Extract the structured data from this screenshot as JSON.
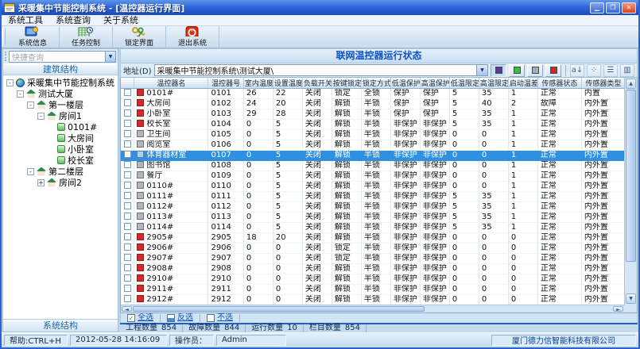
{
  "window": {
    "title": "采暖集中节能控制系统 - [温控器运行界面]"
  },
  "menu": {
    "items": [
      {
        "label": "系统工具"
      },
      {
        "label": "系统查询"
      },
      {
        "label": "关于系统"
      }
    ]
  },
  "toolbar": {
    "buttons": [
      {
        "label": "系统信息"
      },
      {
        "label": "任务控制"
      },
      {
        "label": "锁定界面"
      },
      {
        "label": "退出系统"
      }
    ]
  },
  "sidebar": {
    "quick_search": "快捷查询",
    "header": "建筑结构",
    "footer": "系统结构",
    "tree": [
      {
        "label": "采暖集中节能控制系统",
        "level": 0,
        "icon": "globe",
        "toggle": "-"
      },
      {
        "label": "测试大厦",
        "level": 1,
        "icon": "house",
        "toggle": "-"
      },
      {
        "label": "第一楼层",
        "level": 2,
        "icon": "house",
        "toggle": "-"
      },
      {
        "label": "房间1",
        "level": 3,
        "icon": "house",
        "toggle": "-"
      },
      {
        "label": "0101#",
        "level": 4,
        "icon": "device",
        "toggle": ""
      },
      {
        "label": "大房间",
        "level": 4,
        "icon": "device",
        "toggle": ""
      },
      {
        "label": "小卧室",
        "level": 4,
        "icon": "device",
        "toggle": ""
      },
      {
        "label": "校长室",
        "level": 4,
        "icon": "device",
        "toggle": ""
      },
      {
        "label": "第二楼层",
        "level": 2,
        "icon": "house",
        "toggle": "-"
      },
      {
        "label": "房间2",
        "level": 3,
        "icon": "house",
        "toggle": "+"
      }
    ]
  },
  "content": {
    "panel_title": "联网温控器运行状态",
    "address_label": "地址(D)",
    "address_value": "采暖集中节能控制系统\\测试大厦\\",
    "legend_colors": {
      "purple": "#5c3a8c",
      "green": "#2ec82e",
      "gray": "#a9adb1",
      "red": "#df2020"
    }
  },
  "table": {
    "columns": [
      "温控器名",
      "温控器号",
      "室内温度",
      "设置温度",
      "负载开关",
      "按键锁定",
      "锁定方式",
      "低温保护",
      "高温保护",
      "低温限定",
      "高温限定",
      "启动温差",
      "传感器状态",
      "传感器类型"
    ],
    "status_colors": {
      "red": "#e02424",
      "gray": "#b2b6ba",
      "selected": "#a9d2f2"
    },
    "selected_row_color": "#2f8fe0",
    "rows": [
      {
        "status": "red",
        "selected": false,
        "cells": [
          "0101#",
          "0101",
          "26",
          "22",
          "关闭",
          "锁定",
          "全锁",
          "保护",
          "保护",
          "5",
          "35",
          "1",
          "正常",
          "内置"
        ]
      },
      {
        "status": "red",
        "selected": false,
        "cells": [
          "大房间",
          "0102",
          "24",
          "20",
          "关闭",
          "解锁",
          "半锁",
          "保护",
          "保护",
          "5",
          "40",
          "2",
          "故障",
          "内外置"
        ]
      },
      {
        "status": "red",
        "selected": false,
        "cells": [
          "小卧室",
          "0103",
          "29",
          "28",
          "关闭",
          "解锁",
          "半锁",
          "保护",
          "保护",
          "5",
          "35",
          "1",
          "正常",
          "内外置"
        ]
      },
      {
        "status": "red",
        "selected": false,
        "cells": [
          "校长室",
          "0104",
          "0",
          "5",
          "关闭",
          "解锁",
          "半锁",
          "非保护",
          "非保护",
          "5",
          "35",
          "1",
          "正常",
          "内外置"
        ]
      },
      {
        "status": "gray",
        "selected": false,
        "cells": [
          "卫生间",
          "0105",
          "0",
          "5",
          "关闭",
          "解锁",
          "半锁",
          "非保护",
          "非保护",
          "0",
          "0",
          "1",
          "正常",
          "内外置"
        ]
      },
      {
        "status": "gray",
        "selected": false,
        "cells": [
          "阅览室",
          "0106",
          "0",
          "5",
          "关闭",
          "解锁",
          "半锁",
          "非保护",
          "非保护",
          "0",
          "0",
          "1",
          "正常",
          "内外置"
        ]
      },
      {
        "status": "gray",
        "selected": true,
        "cells": [
          "体育器材室",
          "0107",
          "0",
          "5",
          "关闭",
          "解锁",
          "半锁",
          "非保护",
          "非保护",
          "0",
          "0",
          "1",
          "正常",
          "内外置"
        ]
      },
      {
        "status": "gray",
        "selected": false,
        "cells": [
          "图书馆",
          "0108",
          "0",
          "5",
          "关闭",
          "解锁",
          "半锁",
          "非保护",
          "非保护",
          "0",
          "0",
          "1",
          "正常",
          "内外置"
        ]
      },
      {
        "status": "gray",
        "selected": false,
        "cells": [
          "餐厅",
          "0109",
          "0",
          "5",
          "关闭",
          "解锁",
          "半锁",
          "非保护",
          "非保护",
          "0",
          "0",
          "1",
          "正常",
          "内外置"
        ]
      },
      {
        "status": "gray",
        "selected": false,
        "cells": [
          "0110#",
          "0110",
          "0",
          "5",
          "关闭",
          "解锁",
          "半锁",
          "非保护",
          "非保护",
          "0",
          "0",
          "1",
          "正常",
          "内外置"
        ]
      },
      {
        "status": "gray",
        "selected": false,
        "cells": [
          "0111#",
          "0111",
          "0",
          "5",
          "关闭",
          "解锁",
          "半锁",
          "非保护",
          "非保护",
          "5",
          "35",
          "1",
          "正常",
          "内外置"
        ]
      },
      {
        "status": "gray",
        "selected": false,
        "cells": [
          "0112#",
          "0112",
          "0",
          "5",
          "关闭",
          "解锁",
          "半锁",
          "非保护",
          "非保护",
          "5",
          "35",
          "1",
          "正常",
          "内外置"
        ]
      },
      {
        "status": "gray",
        "selected": false,
        "cells": [
          "0113#",
          "0113",
          "0",
          "5",
          "关闭",
          "解锁",
          "半锁",
          "非保护",
          "非保护",
          "5",
          "35",
          "1",
          "正常",
          "内外置"
        ]
      },
      {
        "status": "gray",
        "selected": false,
        "cells": [
          "0114#",
          "0114",
          "0",
          "5",
          "关闭",
          "解锁",
          "半锁",
          "非保护",
          "非保护",
          "5",
          "35",
          "1",
          "正常",
          "内外置"
        ]
      },
      {
        "status": "red",
        "selected": false,
        "cells": [
          "2905#",
          "2905",
          "18",
          "20",
          "关闭",
          "解锁",
          "半锁",
          "非保护",
          "非保护",
          "0",
          "0",
          "0",
          "正常",
          "内外置"
        ]
      },
      {
        "status": "red",
        "selected": false,
        "cells": [
          "2906#",
          "2906",
          "0",
          "0",
          "关闭",
          "锁定",
          "半锁",
          "非保护",
          "非保护",
          "0",
          "0",
          "0",
          "正常",
          "内外置"
        ]
      },
      {
        "status": "red",
        "selected": false,
        "cells": [
          "2907#",
          "2907",
          "0",
          "0",
          "关闭",
          "锁定",
          "半锁",
          "非保护",
          "非保护",
          "0",
          "0",
          "0",
          "正常",
          "内外置"
        ]
      },
      {
        "status": "red",
        "selected": false,
        "cells": [
          "2908#",
          "2908",
          "0",
          "0",
          "关闭",
          "解锁",
          "半锁",
          "非保护",
          "非保护",
          "0",
          "0",
          "0",
          "正常",
          "内外置"
        ]
      },
      {
        "status": "red",
        "selected": false,
        "cells": [
          "2910#",
          "2910",
          "0",
          "0",
          "关闭",
          "解锁",
          "半锁",
          "非保护",
          "非保护",
          "0",
          "0",
          "0",
          "正常",
          "内外置"
        ]
      },
      {
        "status": "red",
        "selected": false,
        "cells": [
          "2911#",
          "2911",
          "0",
          "0",
          "关闭",
          "解锁",
          "半锁",
          "非保护",
          "非保护",
          "0",
          "0",
          "0",
          "正常",
          "内外置"
        ]
      },
      {
        "status": "red",
        "selected": false,
        "cells": [
          "2912#",
          "2912",
          "0",
          "0",
          "关闭",
          "解锁",
          "半锁",
          "非保护",
          "非保护",
          "0",
          "0",
          "0",
          "正常",
          "内外置"
        ]
      }
    ]
  },
  "selection_bar": {
    "buttons": [
      {
        "label": "全选"
      },
      {
        "label": "反选"
      },
      {
        "label": "不选"
      }
    ]
  },
  "stats": [
    {
      "label": "工程数量",
      "value": "854"
    },
    {
      "label": "故障数量",
      "value": "844"
    },
    {
      "label": "运行数量",
      "value": "10"
    },
    {
      "label": "栏目数量",
      "value": "854"
    }
  ],
  "statusbar": {
    "help": "帮助:CTRL+H",
    "datetime": "2012-05-28 14:16:09",
    "operator_label": "操作员：",
    "operator_value": "Admin",
    "company": "厦门德力信智能科技有限公司"
  }
}
